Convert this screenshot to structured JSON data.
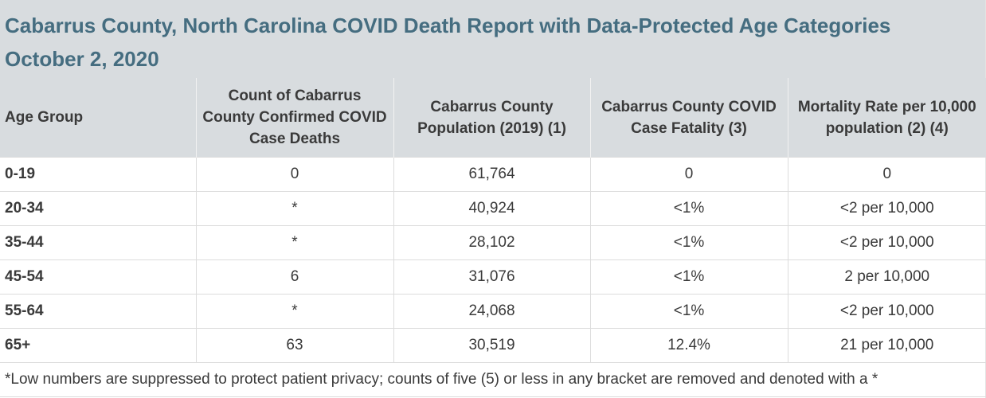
{
  "title": {
    "line1": "Cabarrus County, North Carolina COVID Death Report with Data-Protected Age Categories",
    "line2": "October 2, 2020"
  },
  "table": {
    "headers": [
      "Age Group",
      "Count of Cabarrus County Confirmed COVID Case Deaths",
      "Cabarrus County Population (2019) (1)",
      "Cabarrus County COVID Case Fatality (3)",
      "Mortality Rate per 10,000 population (2) (4)"
    ],
    "rows": [
      [
        "0-19",
        "0",
        "61,764",
        "0",
        "0"
      ],
      [
        "20-34",
        "*",
        "40,924",
        "<1%",
        "<2 per 10,000"
      ],
      [
        "35-44",
        "*",
        "28,102",
        "<1%",
        "<2 per 10,000"
      ],
      [
        "45-54",
        "6",
        "31,076",
        "<1%",
        "2 per 10,000"
      ],
      [
        "55-64",
        "*",
        "24,068",
        "<1%",
        "<2 per 10,000"
      ],
      [
        "65+",
        "63",
        "30,519",
        "12.4%",
        "21 per 10,000"
      ]
    ],
    "footnote": "*Low numbers are suppressed to protect patient privacy; counts of five (5) or less in any bracket are removed and denoted with a *"
  }
}
